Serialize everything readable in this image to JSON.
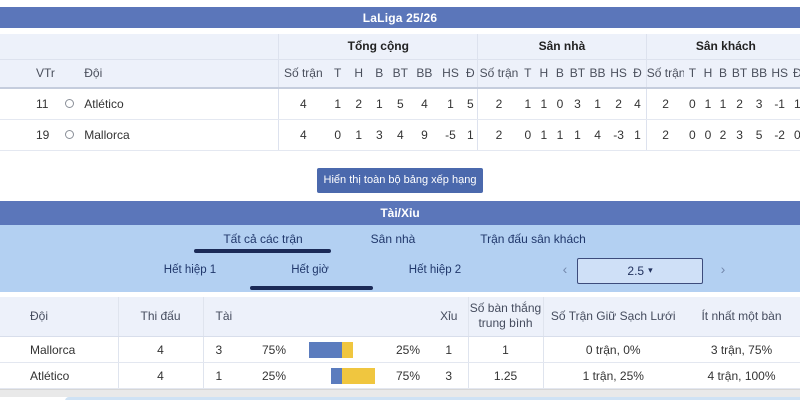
{
  "league_header": {
    "title": "LaLiga 25/26"
  },
  "standings": {
    "group_headers": [
      "Tổng cộng",
      "Sân nhà",
      "Sân khách"
    ],
    "rank_header": "VTr",
    "team_header": "Đội",
    "stat_headers": [
      "Số trận",
      "T",
      "H",
      "B",
      "BT",
      "BB",
      "HS",
      "Đ"
    ],
    "rows": [
      {
        "rank": "11",
        "team": "Atlético",
        "total": [
          "4",
          "1",
          "2",
          "1",
          "5",
          "4",
          "1",
          "5"
        ],
        "home": [
          "2",
          "1",
          "1",
          "0",
          "3",
          "1",
          "2",
          "4"
        ],
        "away": [
          "2",
          "0",
          "1",
          "1",
          "2",
          "3",
          "-1",
          "1"
        ]
      },
      {
        "rank": "19",
        "team": "Mallorca",
        "total": [
          "4",
          "0",
          "1",
          "3",
          "4",
          "9",
          "-5",
          "1"
        ],
        "home": [
          "2",
          "0",
          "1",
          "1",
          "1",
          "4",
          "-3",
          "1"
        ],
        "away": [
          "2",
          "0",
          "0",
          "2",
          "3",
          "5",
          "-2",
          "0"
        ]
      }
    ],
    "show_all_button": "Hiển thị toàn bộ bảng xếp hạng"
  },
  "over_under": {
    "title": "Tài/Xỉu",
    "scope_tabs": [
      {
        "label": "Tất cả các trận",
        "active": true
      },
      {
        "label": "Sân nhà",
        "active": false
      },
      {
        "label": "Trận đấu sân khách",
        "active": false
      }
    ],
    "period_tabs": [
      {
        "label": "Hết hiệp 1",
        "active": false
      },
      {
        "label": "Hết giờ",
        "active": true
      },
      {
        "label": "Hết hiệp 2",
        "active": false
      }
    ],
    "line_selector": {
      "prev": "‹",
      "value": "2.5",
      "caret": "▾",
      "next": "›"
    },
    "headers": {
      "team": "Đội",
      "played": "Thi đấu",
      "over": "Tài",
      "under": "Xỉu",
      "avg_goals_line1": "Số bàn thắng",
      "avg_goals_line2": "trung bình",
      "clean_sheets": "Số Trận Giữ Sạch Lưới",
      "at_least_one": "Ít nhất một bàn"
    },
    "rows": [
      {
        "team": "Mallorca",
        "played": "4",
        "over": "3",
        "over_pct": "75%",
        "over_pct_value": 75,
        "under_pct": "25%",
        "under_pct_value": 25,
        "under": "1",
        "avg_goals": "1",
        "clean_sheets": "0 trận, 0%",
        "at_least_one": "3 trận, 75%"
      },
      {
        "team": "Atlético",
        "played": "4",
        "over": "1",
        "over_pct": "25%",
        "over_pct_value": 25,
        "under_pct": "75%",
        "under_pct_value": 75,
        "under": "3",
        "avg_goals": "1.25",
        "clean_sheets": "1 trận, 25%",
        "at_least_one": "4 trận, 100%"
      }
    ],
    "bar_colors": {
      "over": "#5b7cbe",
      "under": "#f0c63f"
    }
  },
  "theme": {
    "header_blue": "#5b76ba",
    "panel_blue": "#b3d0f2",
    "button_blue": "#4b69ad",
    "active_tab_underline": "#1b2a57",
    "header_row_bg": "#edf1fa"
  }
}
